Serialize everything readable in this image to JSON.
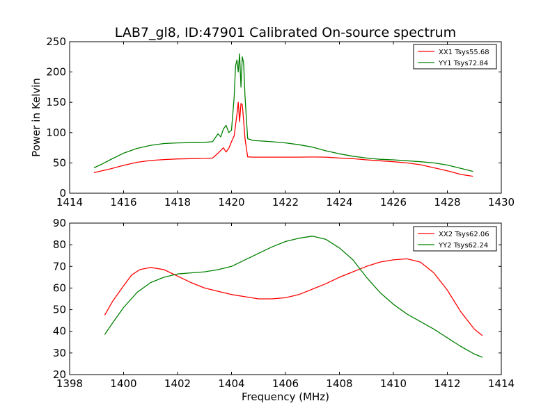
{
  "figure": {
    "title": "LAB7_gl8, ID:47901 Calibrated On-source spectrum"
  },
  "chart_data": [
    {
      "type": "line",
      "title": "LAB7_gl8, ID:47901 Calibrated On-source spectrum",
      "xlabel": "",
      "ylabel": "Power in Kelvin",
      "xlim": [
        1414,
        1430
      ],
      "ylim": [
        0,
        250
      ],
      "xticks": [
        1414,
        1416,
        1418,
        1420,
        1422,
        1424,
        1426,
        1428,
        1430
      ],
      "yticks": [
        0,
        50,
        100,
        150,
        200,
        250
      ],
      "legend_position": "upper right",
      "grid": false,
      "series": [
        {
          "name": "XX1 Tsys55.68",
          "color": "#ff0000",
          "x": [
            1414.9,
            1415.2,
            1415.5,
            1416.0,
            1416.5,
            1417.0,
            1417.5,
            1418.0,
            1418.5,
            1419.0,
            1419.3,
            1419.5,
            1419.7,
            1419.8,
            1419.9,
            1420.0,
            1420.1,
            1420.2,
            1420.25,
            1420.3,
            1420.35,
            1420.4,
            1420.45,
            1420.5,
            1420.6,
            1420.8,
            1421.0,
            1421.5,
            1422.0,
            1422.5,
            1423.0,
            1423.5,
            1424.0,
            1424.5,
            1425.0,
            1425.5,
            1426.0,
            1426.5,
            1427.0,
            1427.5,
            1428.0,
            1428.5,
            1428.95
          ],
          "y": [
            34,
            37,
            40,
            46,
            51,
            54,
            55.5,
            56.5,
            57,
            57.5,
            58,
            66,
            75,
            68,
            74,
            85,
            95,
            130,
            150,
            118,
            148,
            146,
            120,
            90,
            60,
            59.5,
            59.5,
            59.5,
            59.5,
            59.5,
            59.8,
            59.5,
            58,
            57,
            55,
            53.5,
            52,
            50,
            47,
            42,
            37,
            31,
            28
          ]
        },
        {
          "name": "YY1 Tsys72.84",
          "color": "#008000",
          "x": [
            1414.9,
            1415.2,
            1415.5,
            1416.0,
            1416.5,
            1417.0,
            1417.5,
            1418.0,
            1418.5,
            1419.0,
            1419.3,
            1419.5,
            1419.6,
            1419.7,
            1419.8,
            1419.9,
            1420.0,
            1420.1,
            1420.15,
            1420.2,
            1420.25,
            1420.3,
            1420.35,
            1420.4,
            1420.45,
            1420.5,
            1420.6,
            1420.8,
            1421.0,
            1421.5,
            1422.0,
            1422.5,
            1423.0,
            1423.5,
            1424.0,
            1424.5,
            1425.0,
            1425.5,
            1426.0,
            1426.5,
            1427.0,
            1427.5,
            1428.0,
            1428.5,
            1428.95
          ],
          "y": [
            42,
            48,
            55,
            66,
            74,
            79,
            82,
            83,
            83.5,
            84,
            85,
            98,
            93,
            106,
            112,
            100,
            104,
            160,
            210,
            220,
            200,
            230,
            175,
            225,
            215,
            160,
            90,
            87,
            86.5,
            85,
            83,
            80,
            76,
            70,
            65,
            61,
            58,
            56,
            55,
            53.5,
            52,
            50,
            46.5,
            41,
            36
          ]
        }
      ]
    },
    {
      "type": "line",
      "title": "",
      "xlabel": "Frequency (MHz)",
      "ylabel": "",
      "xlim": [
        1398,
        1414
      ],
      "ylim": [
        20,
        90
      ],
      "xticks": [
        1398,
        1400,
        1402,
        1404,
        1406,
        1408,
        1410,
        1412,
        1414
      ],
      "yticks": [
        20,
        30,
        40,
        50,
        60,
        70,
        80,
        90
      ],
      "legend_position": "upper right",
      "grid": false,
      "series": [
        {
          "name": "XX2 Tsys62.06",
          "color": "#ff0000",
          "x": [
            1399.3,
            1399.6,
            1400.0,
            1400.3,
            1400.6,
            1401.0,
            1401.5,
            1402.0,
            1402.5,
            1403.0,
            1403.5,
            1404.0,
            1404.5,
            1405.0,
            1405.5,
            1406.0,
            1406.5,
            1407.0,
            1407.5,
            1408.0,
            1408.5,
            1409.0,
            1409.5,
            1410.0,
            1410.5,
            1411.0,
            1411.5,
            1412.0,
            1412.5,
            1413.0,
            1413.3
          ],
          "y": [
            47.5,
            54,
            61,
            66,
            68.5,
            69.5,
            68.5,
            65.5,
            62.5,
            60,
            58.5,
            57,
            56,
            55,
            55,
            55.5,
            57,
            59.5,
            62,
            65,
            67.5,
            70,
            72,
            73,
            73.5,
            72,
            67,
            59,
            49,
            41,
            38
          ]
        },
        {
          "name": "YY2 Tsys62.24",
          "color": "#008000",
          "x": [
            1399.3,
            1399.6,
            1400.0,
            1400.5,
            1401.0,
            1401.5,
            1402.0,
            1402.5,
            1403.0,
            1403.5,
            1404.0,
            1404.5,
            1405.0,
            1405.5,
            1406.0,
            1406.5,
            1407.0,
            1407.5,
            1408.0,
            1408.5,
            1409.0,
            1409.5,
            1410.0,
            1410.5,
            1411.0,
            1411.5,
            1412.0,
            1412.5,
            1413.0,
            1413.3
          ],
          "y": [
            38.5,
            44,
            51,
            58,
            62.5,
            65,
            66.5,
            67,
            67.5,
            68.5,
            70,
            73,
            76,
            79,
            81.5,
            83,
            84,
            82.5,
            78.5,
            73,
            65,
            58,
            52.5,
            48,
            44.5,
            41,
            37,
            33,
            29.5,
            28
          ]
        }
      ]
    }
  ]
}
